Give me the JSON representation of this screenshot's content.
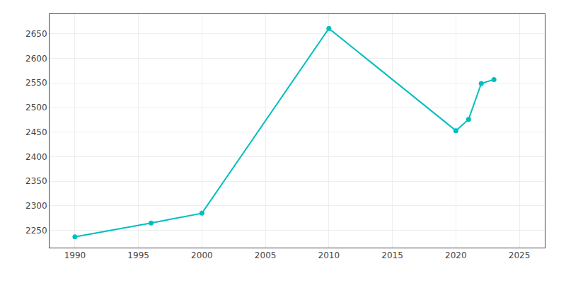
{
  "chart_data": {
    "type": "line",
    "x": [
      1990,
      1996,
      2000,
      2010,
      2020,
      2021,
      2022,
      2023
    ],
    "values": [
      2237,
      2265,
      2285,
      2661,
      2453,
      2476,
      2549,
      2557
    ],
    "color": "#00BEBE",
    "marker": "circle",
    "xlim": [
      1988,
      2027
    ],
    "ylim": [
      2215,
      2690
    ],
    "xticks": [
      1990,
      1995,
      2000,
      2005,
      2010,
      2015,
      2020,
      2025
    ],
    "yticks": [
      2250,
      2300,
      2350,
      2400,
      2450,
      2500,
      2550,
      2600,
      2650
    ],
    "grid": true
  }
}
